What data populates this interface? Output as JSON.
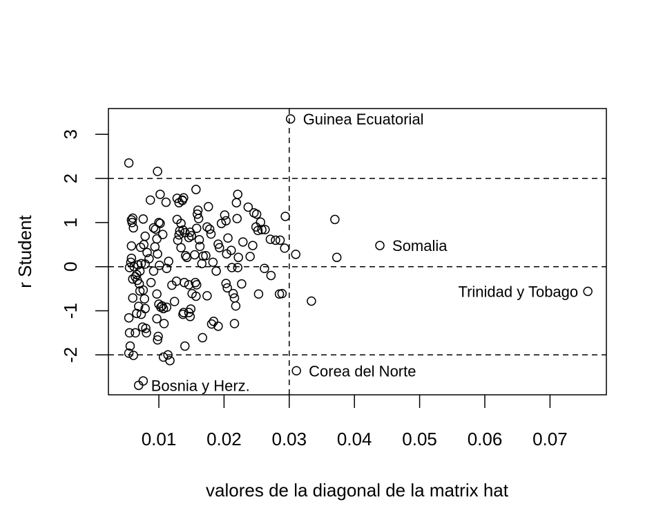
{
  "chart_data": {
    "type": "scatter",
    "title": "",
    "xlabel": "valores de la diagonal de la matrix hat",
    "ylabel": "r Student",
    "xlim": [
      0.0023,
      0.0786
    ],
    "ylim": [
      -2.92,
      3.57
    ],
    "x_ticks": [
      0.01,
      0.02,
      0.03,
      0.04,
      0.05,
      0.06,
      0.07
    ],
    "x_tick_labels": [
      "0.01",
      "0.02",
      "0.03",
      "0.04",
      "0.05",
      "0.06",
      "0.07"
    ],
    "y_ticks": [
      -2,
      -1,
      0,
      1,
      2,
      3
    ],
    "y_tick_labels": [
      "-2",
      "-1",
      "0",
      "1",
      "2",
      "3"
    ],
    "grid": false,
    "legend": null,
    "reference_lines": {
      "horizontal": [
        -2,
        0,
        2
      ],
      "vertical": [
        0.03
      ],
      "style": "dashed"
    },
    "annotations": [
      {
        "label": "Guinea Ecuatorial",
        "x": 0.0302,
        "y": 3.35,
        "pos": "right"
      },
      {
        "label": "Somalia",
        "x": 0.0439,
        "y": 0.48,
        "pos": "right"
      },
      {
        "label": "Trinidad y Tobago",
        "x": 0.0758,
        "y": -0.56,
        "pos": "left"
      },
      {
        "label": "Corea del Norte",
        "x": 0.0311,
        "y": -2.36,
        "pos": "right"
      },
      {
        "label": "Bosnia y Herz.",
        "x": 0.0069,
        "y": -2.69,
        "pos": "right"
      }
    ],
    "points": [
      [
        0.0302,
        3.35
      ],
      [
        0.0439,
        0.48
      ],
      [
        0.0758,
        -0.56
      ],
      [
        0.0311,
        -2.36
      ],
      [
        0.0069,
        -2.69
      ],
      [
        0.0076,
        -2.59
      ],
      [
        0.0054,
        2.35
      ],
      [
        0.0098,
        2.16
      ],
      [
        0.0058,
        1.06
      ],
      [
        0.006,
        1.1
      ],
      [
        0.0059,
        1.0
      ],
      [
        0.0061,
        0.88
      ],
      [
        0.0058,
        0.47
      ],
      [
        0.0058,
        0.19
      ],
      [
        0.0057,
        0.1
      ],
      [
        0.0055,
        -0.02
      ],
      [
        0.0062,
        0.0
      ],
      [
        0.006,
        -0.28
      ],
      [
        0.0064,
        -0.23
      ],
      [
        0.0067,
        -0.31
      ],
      [
        0.0066,
        -0.18
      ],
      [
        0.0071,
        -0.1
      ],
      [
        0.0068,
        0.04
      ],
      [
        0.0073,
        0.07
      ],
      [
        0.006,
        -0.71
      ],
      [
        0.0064,
        -1.5
      ],
      [
        0.0066,
        -1.06
      ],
      [
        0.0069,
        -0.9
      ],
      [
        0.0073,
        -1.08
      ],
      [
        0.0071,
        -0.55
      ],
      [
        0.0076,
        -0.53
      ],
      [
        0.0078,
        -0.73
      ],
      [
        0.0075,
        -1.37
      ],
      [
        0.008,
        -1.4
      ],
      [
        0.0081,
        -1.5
      ],
      [
        0.0079,
        -0.95
      ],
      [
        0.0054,
        -1.16
      ],
      [
        0.0055,
        -1.5
      ],
      [
        0.0056,
        -1.8
      ],
      [
        0.0054,
        -1.96
      ],
      [
        0.0061,
        -2.01
      ],
      [
        0.007,
        -0.39
      ],
      [
        0.0072,
        0.44
      ],
      [
        0.0077,
        0.5
      ],
      [
        0.0079,
        0.06
      ],
      [
        0.0082,
        0.32
      ],
      [
        0.0079,
        0.69
      ],
      [
        0.0076,
        1.08
      ],
      [
        0.0087,
        1.51
      ],
      [
        0.0092,
        0.88
      ],
      [
        0.0095,
        0.85
      ],
      [
        0.01,
        1.0
      ],
      [
        0.0102,
        0.98
      ],
      [
        0.0097,
        0.63
      ],
      [
        0.0094,
        0.45
      ],
      [
        0.0098,
        0.29
      ],
      [
        0.0101,
        0.03
      ],
      [
        0.0092,
        -0.1
      ],
      [
        0.0085,
        0.18
      ],
      [
        0.0088,
        -0.36
      ],
      [
        0.0097,
        -0.62
      ],
      [
        0.01,
        -0.85
      ],
      [
        0.0103,
        -0.92
      ],
      [
        0.0105,
        -0.89
      ],
      [
        0.0107,
        -0.95
      ],
      [
        0.0097,
        -1.18
      ],
      [
        0.0099,
        -1.58
      ],
      [
        0.0098,
        -1.66
      ],
      [
        0.0107,
        -2.05
      ],
      [
        0.0114,
        -2.0
      ],
      [
        0.0117,
        -2.13
      ],
      [
        0.0108,
        -1.29
      ],
      [
        0.0112,
        -0.92
      ],
      [
        0.0115,
        0.12
      ],
      [
        0.0112,
        -0.04
      ],
      [
        0.012,
        -0.42
      ],
      [
        0.0127,
        -0.33
      ],
      [
        0.0106,
        0.73
      ],
      [
        0.0102,
        1.64
      ],
      [
        0.0111,
        1.46
      ],
      [
        0.0128,
        1.55
      ],
      [
        0.0131,
        1.45
      ],
      [
        0.0136,
        1.5
      ],
      [
        0.0138,
        1.56
      ],
      [
        0.0136,
        1.51
      ],
      [
        0.0134,
        0.98
      ],
      [
        0.0132,
        0.81
      ],
      [
        0.0131,
        0.72
      ],
      [
        0.0137,
        0.83
      ],
      [
        0.014,
        0.77
      ],
      [
        0.0128,
        1.07
      ],
      [
        0.0129,
        0.6
      ],
      [
        0.0134,
        0.43
      ],
      [
        0.0141,
        0.25
      ],
      [
        0.0143,
        0.21
      ],
      [
        0.0146,
        0.66
      ],
      [
        0.0148,
        0.78
      ],
      [
        0.015,
        0.7
      ],
      [
        0.0139,
        -0.36
      ],
      [
        0.0146,
        -0.41
      ],
      [
        0.0151,
        -0.61
      ],
      [
        0.0137,
        -1.08
      ],
      [
        0.0138,
        -1.04
      ],
      [
        0.0146,
        -1.04
      ],
      [
        0.0149,
        -0.96
      ],
      [
        0.0148,
        -1.13
      ],
      [
        0.014,
        -1.8
      ],
      [
        0.0124,
        -0.79
      ],
      [
        0.0157,
        1.75
      ],
      [
        0.016,
        1.28
      ],
      [
        0.0159,
        1.19
      ],
      [
        0.0161,
        1.09
      ],
      [
        0.0158,
        0.87
      ],
      [
        0.0162,
        0.61
      ],
      [
        0.0163,
        0.46
      ],
      [
        0.0155,
        0.27
      ],
      [
        0.0156,
        -0.36
      ],
      [
        0.0158,
        -0.41
      ],
      [
        0.0157,
        -0.67
      ],
      [
        0.0166,
        0.07
      ],
      [
        0.0168,
        0.24
      ],
      [
        0.0172,
        0.25
      ],
      [
        0.0174,
        -0.66
      ],
      [
        0.0176,
        1.36
      ],
      [
        0.0174,
        0.9
      ],
      [
        0.0178,
        0.85
      ],
      [
        0.018,
        0.74
      ],
      [
        0.0183,
        0.1
      ],
      [
        0.0188,
        -0.1
      ],
      [
        0.0167,
        -1.61
      ],
      [
        0.0181,
        -1.3
      ],
      [
        0.0184,
        -1.24
      ],
      [
        0.0191,
        -1.35
      ],
      [
        0.0191,
        0.51
      ],
      [
        0.0193,
        0.43
      ],
      [
        0.0196,
        0.98
      ],
      [
        0.0201,
        1.17
      ],
      [
        0.0203,
        1.04
      ],
      [
        0.0206,
        0.65
      ],
      [
        0.0204,
        0.29
      ],
      [
        0.0203,
        -0.38
      ],
      [
        0.0205,
        -0.48
      ],
      [
        0.0212,
        -0.02
      ],
      [
        0.0211,
        0.37
      ],
      [
        0.0214,
        -0.61
      ],
      [
        0.0216,
        -0.71
      ],
      [
        0.0218,
        -0.89
      ],
      [
        0.0216,
        -1.29
      ],
      [
        0.0219,
        1.45
      ],
      [
        0.0221,
        1.64
      ],
      [
        0.022,
        1.09
      ],
      [
        0.0222,
        0.21
      ],
      [
        0.0221,
        -0.02
      ],
      [
        0.0227,
        -0.39
      ],
      [
        0.0229,
        0.56
      ],
      [
        0.0237,
        1.35
      ],
      [
        0.0244,
        0.48
      ],
      [
        0.024,
        0.23
      ],
      [
        0.0246,
        1.22
      ],
      [
        0.025,
        1.19
      ],
      [
        0.0249,
        0.9
      ],
      [
        0.0252,
        0.82
      ],
      [
        0.0253,
        -0.62
      ],
      [
        0.0256,
        1.01
      ],
      [
        0.0258,
        0.84
      ],
      [
        0.0263,
        0.84
      ],
      [
        0.0262,
        -0.04
      ],
      [
        0.0271,
        0.62
      ],
      [
        0.0279,
        0.6
      ],
      [
        0.0286,
        0.6
      ],
      [
        0.0272,
        -0.2
      ],
      [
        0.0293,
        0.42
      ],
      [
        0.0285,
        -0.62
      ],
      [
        0.0289,
        -0.61
      ],
      [
        0.0294,
        1.14
      ],
      [
        0.031,
        0.28
      ],
      [
        0.0334,
        -0.78
      ],
      [
        0.037,
        1.07
      ],
      [
        0.0373,
        0.21
      ]
    ]
  }
}
